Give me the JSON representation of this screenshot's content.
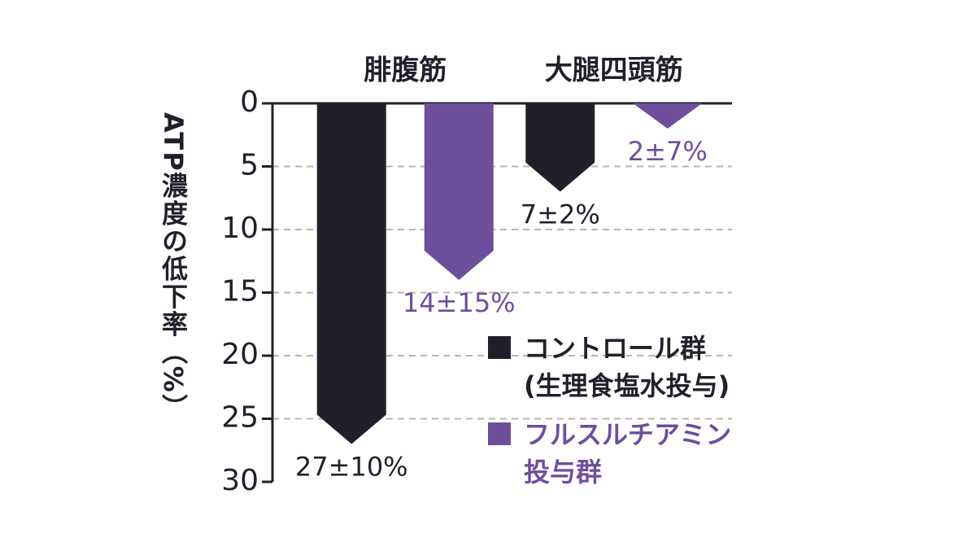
{
  "chart_data": {
    "type": "bar",
    "y_label": "ATP濃度の低下率（%）",
    "categories": [
      "腓腹筋",
      "大腿四頭筋"
    ],
    "series": [
      {
        "name": "コントロール群\n(生理食塩水投与)",
        "color": "#231f2a",
        "values": [
          27,
          7
        ],
        "value_labels": [
          "27±10%",
          "7±2%"
        ]
      },
      {
        "name": "フルスルチアミン\n投与群",
        "color": "#6f4e9c",
        "values": [
          14,
          2
        ],
        "value_labels": [
          "14±15%",
          "2±7%"
        ]
      }
    ],
    "ylim": [
      0,
      30
    ],
    "yticks": [
      0,
      5,
      10,
      15,
      20,
      25,
      30
    ],
    "y_inverted": true,
    "grid": true
  }
}
